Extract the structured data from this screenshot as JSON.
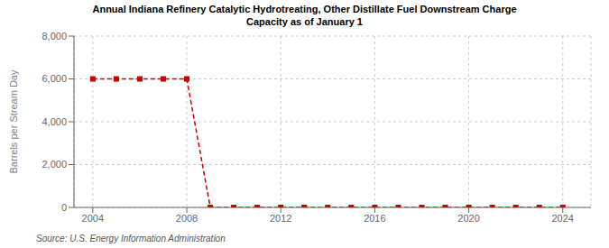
{
  "chart_data": {
    "type": "line",
    "title": "Annual Indiana Refinery Catalytic Hydrotreating, Other Distillate Fuel Downstream Charge\nCapacity as of January 1",
    "ylabel": "Barrels per Stream Day",
    "source": "Source: U.S. Energy Information Administration",
    "x": [
      2004,
      2005,
      2006,
      2007,
      2008,
      2009,
      2010,
      2011,
      2012,
      2013,
      2014,
      2015,
      2016,
      2017,
      2018,
      2019,
      2020,
      2021,
      2022,
      2023,
      2024
    ],
    "values": [
      6000,
      6000,
      6000,
      6000,
      6000,
      0,
      0,
      0,
      0,
      0,
      0,
      0,
      0,
      0,
      0,
      0,
      0,
      0,
      0,
      0,
      0
    ],
    "color": "#cc0000",
    "line_style": "dashed",
    "marker": "square",
    "xlim": [
      2003.2,
      2025.2
    ],
    "xticks": [
      2004,
      2008,
      2012,
      2016,
      2020,
      2024
    ],
    "ylim": [
      0,
      8000
    ],
    "yticks": [
      0,
      {
        "value": 2000,
        "label": "2,000"
      },
      {
        "value": 4000,
        "label": "4,000"
      },
      {
        "value": 6000,
        "label": "6,000"
      },
      {
        "value": 8000,
        "label": "8,000"
      }
    ],
    "grid": true
  }
}
